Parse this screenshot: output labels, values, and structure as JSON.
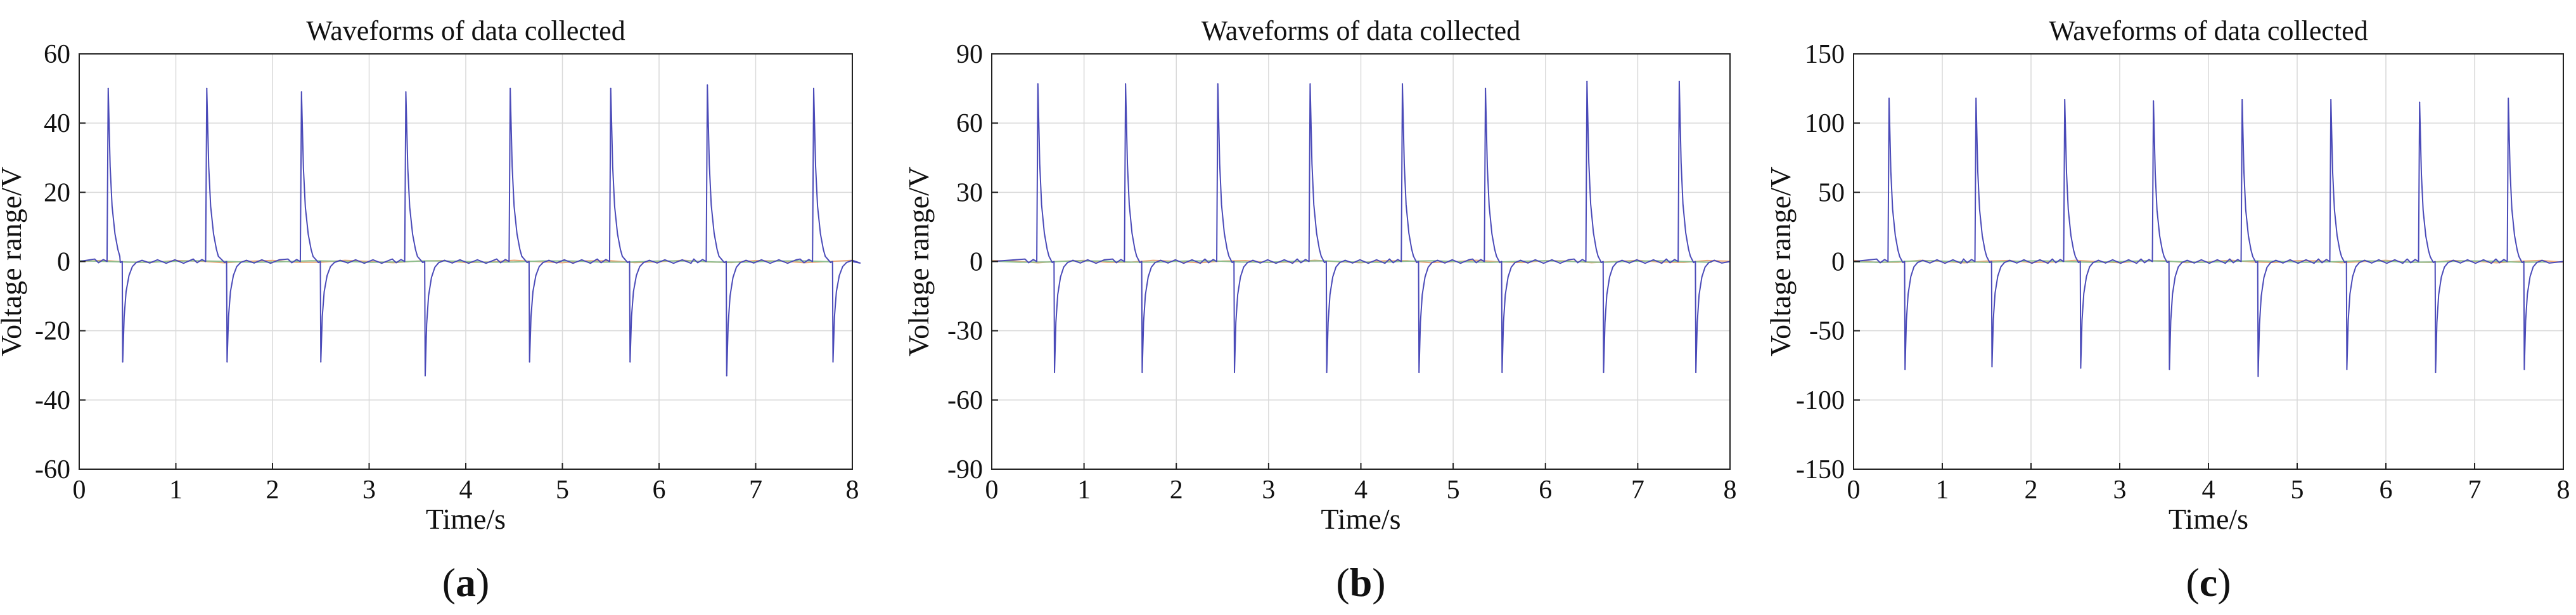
{
  "figure": {
    "panels": [
      {
        "caption_open": "(",
        "caption_letter": "a",
        "caption_close": ")"
      },
      {
        "caption_open": "(",
        "caption_letter": "b",
        "caption_close": ")"
      },
      {
        "caption_open": "(",
        "caption_letter": "c",
        "caption_close": ")"
      }
    ]
  },
  "chart_data": [
    {
      "type": "line",
      "title": "Waveforms of data collected",
      "xlabel": "Time/s",
      "ylabel": "Voltage range/V",
      "xlim": [
        0,
        8
      ],
      "ylim": [
        -60,
        60
      ],
      "xticks": [
        0,
        1,
        2,
        3,
        4,
        5,
        6,
        7,
        8
      ],
      "yticks": [
        -60,
        -40,
        -20,
        0,
        20,
        40,
        60
      ],
      "grid": true,
      "colors": {
        "primary": "#4a4ab8",
        "secondary": "#e8a878",
        "tertiary": "#8fbf8f"
      },
      "series": [
        {
          "name": "primary",
          "positive_peaks": [
            [
              0.3,
              50
            ],
            [
              1.32,
              50
            ],
            [
              2.3,
              49
            ],
            [
              3.38,
              49
            ],
            [
              4.46,
              50
            ],
            [
              5.5,
              50
            ],
            [
              6.5,
              51
            ],
            [
              7.6,
              50
            ]
          ],
          "negative_peaks": [
            [
              0.45,
              -29
            ],
            [
              1.53,
              -29
            ],
            [
              2.5,
              -29
            ],
            [
              3.58,
              -33
            ],
            [
              4.66,
              -29
            ],
            [
              5.7,
              -29
            ],
            [
              6.7,
              -33
            ],
            [
              7.8,
              -29
            ]
          ]
        }
      ]
    },
    {
      "type": "line",
      "title": "Waveforms of data collected",
      "xlabel": "Time/s",
      "ylabel": "Voltage range/V",
      "xlim": [
        0,
        8
      ],
      "ylim": [
        -90,
        90
      ],
      "xticks": [
        0,
        1,
        2,
        3,
        4,
        5,
        6,
        7,
        8
      ],
      "yticks": [
        -90,
        -60,
        -30,
        0,
        30,
        60,
        90
      ],
      "grid": true,
      "colors": {
        "primary": "#4a4ab8",
        "secondary": "#e8a878",
        "tertiary": "#8fbf8f"
      },
      "series": [
        {
          "name": "primary",
          "positive_peaks": [
            [
              0.5,
              77
            ],
            [
              1.45,
              77
            ],
            [
              2.45,
              77
            ],
            [
              3.45,
              77
            ],
            [
              4.45,
              77
            ],
            [
              5.35,
              75
            ],
            [
              6.45,
              78
            ],
            [
              7.45,
              78
            ]
          ],
          "negative_peaks": [
            [
              0.68,
              -48
            ],
            [
              1.63,
              -48
            ],
            [
              2.63,
              -48
            ],
            [
              3.63,
              -48
            ],
            [
              4.63,
              -48
            ],
            [
              5.53,
              -48
            ],
            [
              6.63,
              -48
            ],
            [
              7.63,
              -48
            ]
          ]
        }
      ]
    },
    {
      "type": "line",
      "title": "Waveforms of data collected",
      "xlabel": "Time/s",
      "ylabel": "Voltage range/V",
      "xlim": [
        0,
        8
      ],
      "ylim": [
        -150,
        150
      ],
      "xticks": [
        0,
        1,
        2,
        3,
        4,
        5,
        6,
        7,
        8
      ],
      "yticks": [
        -150,
        -100,
        -50,
        0,
        50,
        100,
        150
      ],
      "grid": true,
      "colors": {
        "primary": "#4a4ab8",
        "secondary": "#e8a878",
        "tertiary": "#8fbf8f"
      },
      "series": [
        {
          "name": "primary",
          "positive_peaks": [
            [
              0.4,
              118
            ],
            [
              1.38,
              118
            ],
            [
              2.38,
              117
            ],
            [
              3.38,
              116
            ],
            [
              4.38,
              117
            ],
            [
              5.38,
              117
            ],
            [
              6.38,
              115
            ],
            [
              7.38,
              118
            ]
          ],
          "negative_peaks": [
            [
              0.58,
              -78
            ],
            [
              1.56,
              -76
            ],
            [
              2.56,
              -77
            ],
            [
              3.56,
              -78
            ],
            [
              4.56,
              -83
            ],
            [
              5.56,
              -78
            ],
            [
              6.56,
              -80
            ],
            [
              7.56,
              -78
            ]
          ]
        }
      ]
    }
  ]
}
